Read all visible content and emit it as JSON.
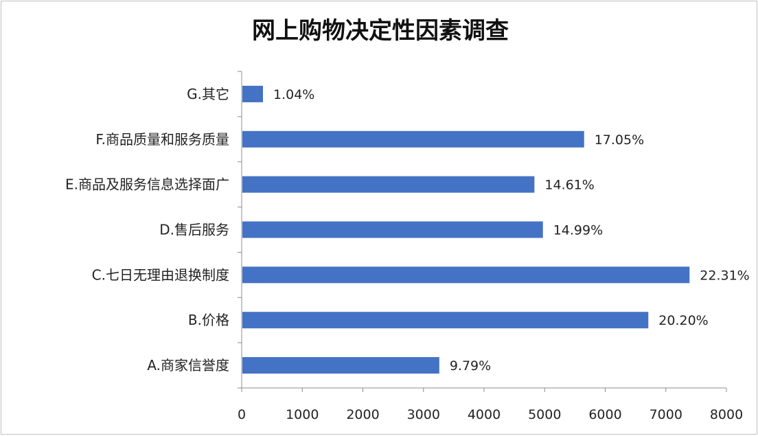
{
  "chart_data": {
    "type": "bar",
    "orientation": "horizontal",
    "title": "网上购物决定性因素调查",
    "xlabel": "",
    "ylabel": "",
    "categories": [
      "A.商家信誉度",
      "B.价格",
      "C.七日无理由退换制度",
      "D.售后服务",
      "E.商品及服务信息选择面广",
      "F.商品质量和服务质量",
      "G.其它"
    ],
    "values": [
      3250,
      6700,
      7380,
      4960,
      4820,
      5640,
      340
    ],
    "data_labels": [
      "9.79%",
      "20.20%",
      "22.31%",
      "14.99%",
      "14.61%",
      "17.05%",
      "1.04%"
    ],
    "xlim": [
      0,
      8000
    ],
    "xticks": [
      0,
      1000,
      2000,
      3000,
      4000,
      5000,
      6000,
      7000,
      8000
    ],
    "grid": false,
    "legend": "none",
    "bar_color": "#4472C4"
  }
}
